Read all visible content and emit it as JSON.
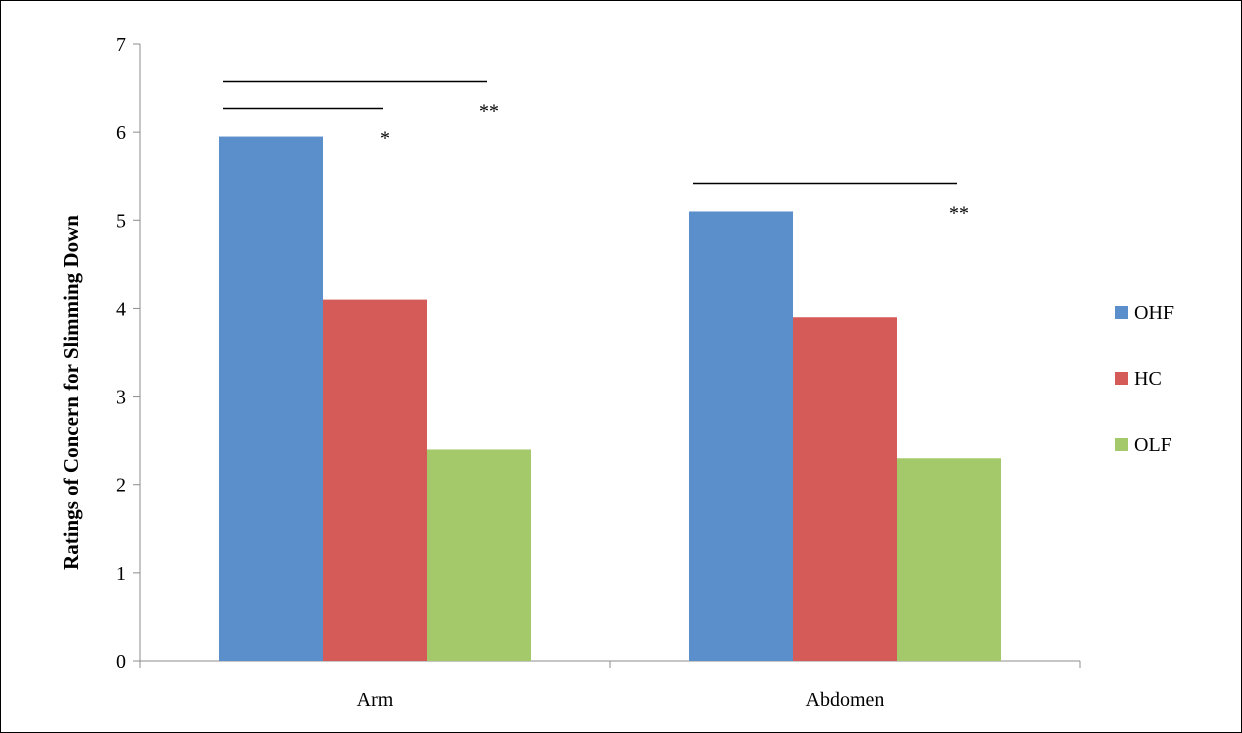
{
  "chart_data": {
    "type": "bar",
    "title": "",
    "xlabel": "",
    "ylabel": "Ratings of Concern for Slimming Down",
    "ylim": [
      0,
      7
    ],
    "yticks": [
      0,
      1,
      2,
      3,
      4,
      5,
      6,
      7
    ],
    "categories": [
      "Arm",
      "Abdomen"
    ],
    "series": [
      {
        "name": "OHF",
        "color": "#5b8fcb",
        "values": [
          5.95,
          5.1
        ]
      },
      {
        "name": "HC",
        "color": "#d45b58",
        "values": [
          4.1,
          3.9
        ]
      },
      {
        "name": "OLF",
        "color": "#a3c96a",
        "values": [
          2.4,
          2.3
        ]
      }
    ],
    "grid": false,
    "legend": "right",
    "significance": [
      {
        "category": "Arm",
        "from_series": "OHF",
        "to_series": "HC",
        "label": "*"
      },
      {
        "category": "Arm",
        "from_series": "OHF",
        "to_series": "OLF",
        "label": "**"
      },
      {
        "category": "Abdomen",
        "from_series": "OHF",
        "to_series": "OLF",
        "label": "**"
      }
    ]
  }
}
